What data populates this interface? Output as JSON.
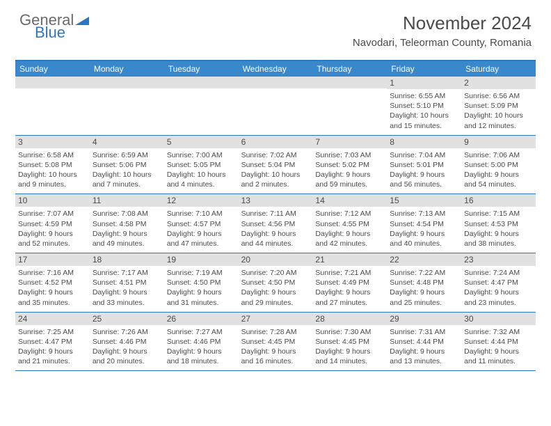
{
  "logo": {
    "top": "General",
    "bottom": "Blue"
  },
  "title": "November 2024",
  "subtitle": "Navodari, Teleorman County, Romania",
  "weekdays": [
    "Sunday",
    "Monday",
    "Tuesday",
    "Wednesday",
    "Thursday",
    "Friday",
    "Saturday"
  ],
  "colors": {
    "header_bg": "#3a88cc",
    "border": "#2b78c2",
    "daynum_bg": "#e1e1e1",
    "text": "#4a4a4a"
  },
  "weeks": [
    [
      {
        "num": "",
        "lines": []
      },
      {
        "num": "",
        "lines": []
      },
      {
        "num": "",
        "lines": []
      },
      {
        "num": "",
        "lines": []
      },
      {
        "num": "",
        "lines": []
      },
      {
        "num": "1",
        "lines": [
          "Sunrise: 6:55 AM",
          "Sunset: 5:10 PM",
          "Daylight: 10 hours and 15 minutes."
        ]
      },
      {
        "num": "2",
        "lines": [
          "Sunrise: 6:56 AM",
          "Sunset: 5:09 PM",
          "Daylight: 10 hours and 12 minutes."
        ]
      }
    ],
    [
      {
        "num": "3",
        "lines": [
          "Sunrise: 6:58 AM",
          "Sunset: 5:08 PM",
          "Daylight: 10 hours and 9 minutes."
        ]
      },
      {
        "num": "4",
        "lines": [
          "Sunrise: 6:59 AM",
          "Sunset: 5:06 PM",
          "Daylight: 10 hours and 7 minutes."
        ]
      },
      {
        "num": "5",
        "lines": [
          "Sunrise: 7:00 AM",
          "Sunset: 5:05 PM",
          "Daylight: 10 hours and 4 minutes."
        ]
      },
      {
        "num": "6",
        "lines": [
          "Sunrise: 7:02 AM",
          "Sunset: 5:04 PM",
          "Daylight: 10 hours and 2 minutes."
        ]
      },
      {
        "num": "7",
        "lines": [
          "Sunrise: 7:03 AM",
          "Sunset: 5:02 PM",
          "Daylight: 9 hours and 59 minutes."
        ]
      },
      {
        "num": "8",
        "lines": [
          "Sunrise: 7:04 AM",
          "Sunset: 5:01 PM",
          "Daylight: 9 hours and 56 minutes."
        ]
      },
      {
        "num": "9",
        "lines": [
          "Sunrise: 7:06 AM",
          "Sunset: 5:00 PM",
          "Daylight: 9 hours and 54 minutes."
        ]
      }
    ],
    [
      {
        "num": "10",
        "lines": [
          "Sunrise: 7:07 AM",
          "Sunset: 4:59 PM",
          "Daylight: 9 hours and 52 minutes."
        ]
      },
      {
        "num": "11",
        "lines": [
          "Sunrise: 7:08 AM",
          "Sunset: 4:58 PM",
          "Daylight: 9 hours and 49 minutes."
        ]
      },
      {
        "num": "12",
        "lines": [
          "Sunrise: 7:10 AM",
          "Sunset: 4:57 PM",
          "Daylight: 9 hours and 47 minutes."
        ]
      },
      {
        "num": "13",
        "lines": [
          "Sunrise: 7:11 AM",
          "Sunset: 4:56 PM",
          "Daylight: 9 hours and 44 minutes."
        ]
      },
      {
        "num": "14",
        "lines": [
          "Sunrise: 7:12 AM",
          "Sunset: 4:55 PM",
          "Daylight: 9 hours and 42 minutes."
        ]
      },
      {
        "num": "15",
        "lines": [
          "Sunrise: 7:13 AM",
          "Sunset: 4:54 PM",
          "Daylight: 9 hours and 40 minutes."
        ]
      },
      {
        "num": "16",
        "lines": [
          "Sunrise: 7:15 AM",
          "Sunset: 4:53 PM",
          "Daylight: 9 hours and 38 minutes."
        ]
      }
    ],
    [
      {
        "num": "17",
        "lines": [
          "Sunrise: 7:16 AM",
          "Sunset: 4:52 PM",
          "Daylight: 9 hours and 35 minutes."
        ]
      },
      {
        "num": "18",
        "lines": [
          "Sunrise: 7:17 AM",
          "Sunset: 4:51 PM",
          "Daylight: 9 hours and 33 minutes."
        ]
      },
      {
        "num": "19",
        "lines": [
          "Sunrise: 7:19 AM",
          "Sunset: 4:50 PM",
          "Daylight: 9 hours and 31 minutes."
        ]
      },
      {
        "num": "20",
        "lines": [
          "Sunrise: 7:20 AM",
          "Sunset: 4:50 PM",
          "Daylight: 9 hours and 29 minutes."
        ]
      },
      {
        "num": "21",
        "lines": [
          "Sunrise: 7:21 AM",
          "Sunset: 4:49 PM",
          "Daylight: 9 hours and 27 minutes."
        ]
      },
      {
        "num": "22",
        "lines": [
          "Sunrise: 7:22 AM",
          "Sunset: 4:48 PM",
          "Daylight: 9 hours and 25 minutes."
        ]
      },
      {
        "num": "23",
        "lines": [
          "Sunrise: 7:24 AM",
          "Sunset: 4:47 PM",
          "Daylight: 9 hours and 23 minutes."
        ]
      }
    ],
    [
      {
        "num": "24",
        "lines": [
          "Sunrise: 7:25 AM",
          "Sunset: 4:47 PM",
          "Daylight: 9 hours and 21 minutes."
        ]
      },
      {
        "num": "25",
        "lines": [
          "Sunrise: 7:26 AM",
          "Sunset: 4:46 PM",
          "Daylight: 9 hours and 20 minutes."
        ]
      },
      {
        "num": "26",
        "lines": [
          "Sunrise: 7:27 AM",
          "Sunset: 4:46 PM",
          "Daylight: 9 hours and 18 minutes."
        ]
      },
      {
        "num": "27",
        "lines": [
          "Sunrise: 7:28 AM",
          "Sunset: 4:45 PM",
          "Daylight: 9 hours and 16 minutes."
        ]
      },
      {
        "num": "28",
        "lines": [
          "Sunrise: 7:30 AM",
          "Sunset: 4:45 PM",
          "Daylight: 9 hours and 14 minutes."
        ]
      },
      {
        "num": "29",
        "lines": [
          "Sunrise: 7:31 AM",
          "Sunset: 4:44 PM",
          "Daylight: 9 hours and 13 minutes."
        ]
      },
      {
        "num": "30",
        "lines": [
          "Sunrise: 7:32 AM",
          "Sunset: 4:44 PM",
          "Daylight: 9 hours and 11 minutes."
        ]
      }
    ]
  ]
}
